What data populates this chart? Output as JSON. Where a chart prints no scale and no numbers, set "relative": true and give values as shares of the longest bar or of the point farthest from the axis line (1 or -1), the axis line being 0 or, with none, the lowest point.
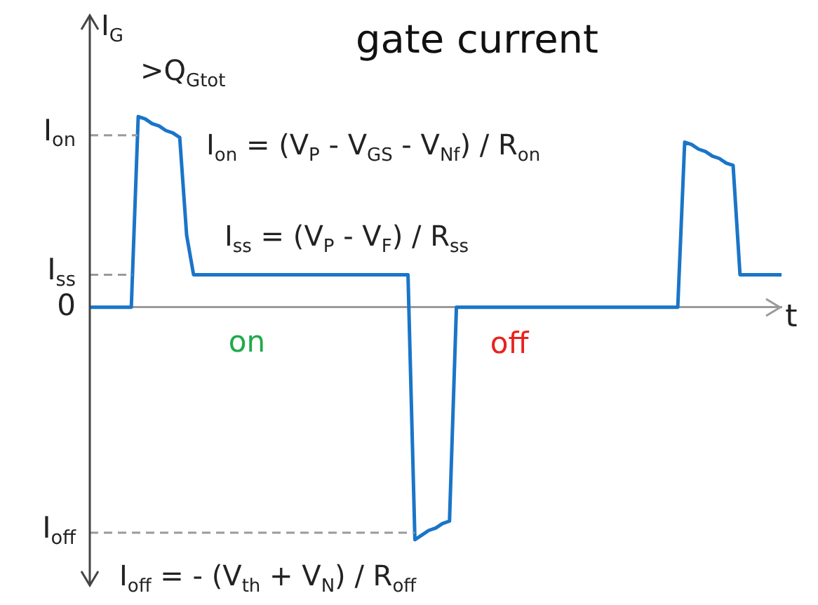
{
  "chart_data": {
    "type": "line",
    "title": "gate current",
    "xlabel": "t",
    "ylabel": "I$_{G}$",
    "relative": true,
    "categories": [
      null,
      null,
      null,
      null,
      null,
      null,
      null,
      null,
      null,
      null,
      null,
      null,
      null,
      null,
      null,
      null,
      null,
      null,
      null,
      null,
      null,
      null,
      null,
      null,
      null,
      null,
      null,
      null,
      null,
      null,
      null,
      null,
      null,
      null,
      null,
      null,
      null,
      null,
      null,
      null,
      null,
      null,
      null,
      null,
      null,
      null,
      null,
      null,
      null,
      null,
      null,
      null,
      null,
      null,
      null,
      null,
      null,
      null,
      null,
      null,
      null,
      null,
      null,
      null,
      null,
      null,
      null,
      null,
      null,
      null,
      null,
      null,
      null,
      null,
      null,
      null,
      null,
      null,
      null,
      null,
      null,
      null,
      null,
      null,
      null,
      null,
      null,
      null,
      null,
      null,
      null,
      null,
      null,
      null,
      null,
      null,
      null,
      null,
      null,
      null,
      null
    ],
    "series": [
      {
        "color": "#1a75c8",
        "values": [
          0,
          0,
          0,
          0,
          0,
          0,
          0,
          0.82,
          0.81,
          0.79,
          0.78,
          0.76,
          0.75,
          0.73,
          0.31,
          0.14,
          0.14,
          0.14,
          0.14,
          0.14,
          0.14,
          0.14,
          0.14,
          0.14,
          0.14,
          0.14,
          0.14,
          0.14,
          0.14,
          0.14,
          0.14,
          0.14,
          0.14,
          0.14,
          0.14,
          0.14,
          0.14,
          0.14,
          0.14,
          0.14,
          0.14,
          0.14,
          0.14,
          0.14,
          0.14,
          0.14,
          0.14,
          -1,
          -0.98,
          -0.96,
          -0.95,
          -0.93,
          -0.92,
          0,
          0,
          0,
          0,
          0,
          0,
          0,
          0,
          0,
          0,
          0,
          0,
          0,
          0,
          0,
          0,
          0,
          0,
          0,
          0,
          0,
          0,
          0,
          0,
          0,
          0,
          0,
          0,
          0,
          0,
          0,
          0,
          0,
          0.71,
          0.7,
          0.68,
          0.67,
          0.65,
          0.64,
          0.62,
          0.61,
          0.14,
          0.14,
          0.14,
          0.14,
          0.14,
          0.14,
          0.14
        ]
      }
    ],
    "ref_lines": [
      {
        "axis": "y",
        "value": 0.74,
        "label": "I$_{on}$",
        "line_style": "dashed"
      },
      {
        "axis": "y",
        "value": 0.14,
        "label": "I$_{ss}$",
        "line_style": "dashed"
      },
      {
        "axis": "y",
        "value": 0,
        "label": "0",
        "line_style": "solid"
      },
      {
        "axis": "y",
        "value": -0.97,
        "label": "I$_{off}$",
        "line_style": "dashed"
      }
    ],
    "annotations": [
      ">Q$_{Gtot}$",
      "I$_{on}$ = (V$_{P}$ - V$_{GS}$ - V$_{Nf}$) / R$_{on}$",
      "I$_{ss}$ = (V$_{P}$ - V$_{F}$) / R$_{ss}$",
      "on",
      "off",
      "I$_{off}$ = - (V$_{th}$ + V$_{N}$) / R$_{off}$"
    ]
  }
}
